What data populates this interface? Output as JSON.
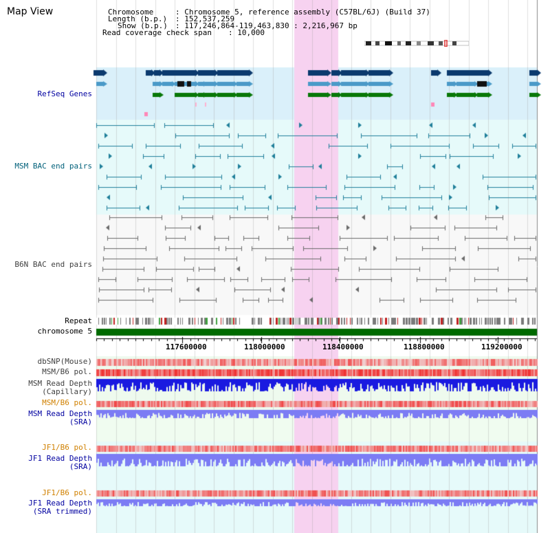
{
  "title": "Map View",
  "info": {
    "chromosome_key": "Chromosome",
    "chromosome_value": ": Chromosome 5, reference assembly (C57BL/6J) (Build 37)",
    "length_key": "Length (b.p.)",
    "length_value": ": 152,537,259",
    "show_key": "Show (b.p.)",
    "show_value": ": 117,246,864-119,463,830 : 2,216,967 bp",
    "coverage_key": "Read coverage check span",
    "coverage_value": ": 10,000"
  },
  "tracks": {
    "refseq": "RefSeq Genes",
    "msm_bac": "MSM BAC end pairs",
    "b6n_bac": "B6N BAC end pairs",
    "repeat": "Repeat",
    "chromosome": "chromosome 5",
    "dbsnp": "dbSNP(Mouse)",
    "msm_b6_pol_1": "MSM/B6 pol.",
    "msm_read_depth_cap_1": "MSM Read Depth",
    "msm_read_depth_cap_2": "(Capillary)",
    "msm_b6_pol_2": "MSM/B6 pol.",
    "msm_read_depth_sra_1": "MSM Read Depth",
    "msm_read_depth_sra_2": "(SRA)",
    "jf1_b6_pol_1": "JF1/B6 pol.",
    "jf1_read_depth_sra_1": "JF1 Read Depth",
    "jf1_read_depth_sra_2": "(SRA)",
    "jf1_b6_pol_2": "JF1/B6 pol.",
    "jf1_read_depth_trim_1": "JF1 Read Depth",
    "jf1_read_depth_trim_2": "(SRA trimmed)"
  },
  "axis_ticks": [
    "117600000",
    "118000000",
    "118400000",
    "118800000",
    "119200000"
  ],
  "colors": {
    "refseq_bg": "#daf0fa",
    "msm_bg": "#e6fafa",
    "b6n_bg": "#f8f8f8",
    "highlight": "#f7d2f0",
    "gene_dark": "#0b3a6e",
    "gene_mid": "#4a9ac8",
    "gene_green": "#087808",
    "bac_teal": "#1f7f9a",
    "bac_gray": "#6a6a6a",
    "chromosome_bar": "#006a00",
    "snp_red": "#f04040",
    "depth_blue": "#1a1ae0",
    "depth_lavender": "#7c7cf4",
    "label_navy": "#0000a0",
    "label_orange": "#d08000",
    "label_teal": "#00607a"
  }
}
